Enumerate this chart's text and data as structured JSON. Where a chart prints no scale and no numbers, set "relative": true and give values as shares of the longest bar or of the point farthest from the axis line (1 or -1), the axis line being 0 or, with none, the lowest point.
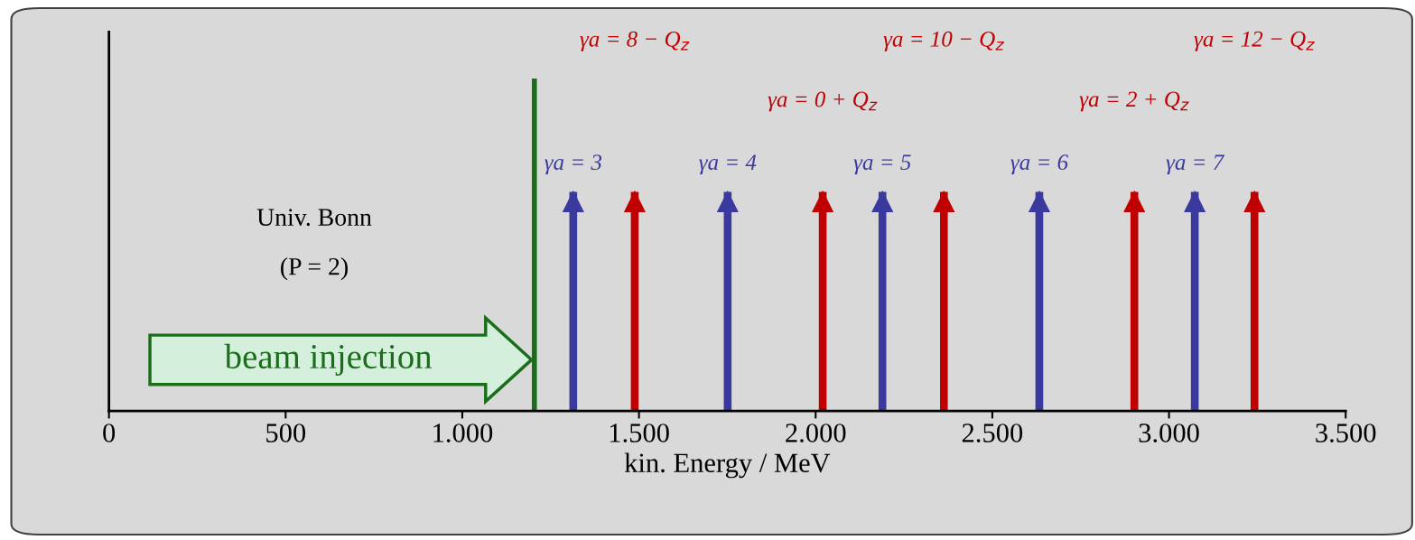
{
  "chart_data": {
    "type": "bar",
    "relative": true,
    "xlabel": "kin. Energy / MeV",
    "xlim": [
      0,
      3500
    ],
    "xticks": [
      0,
      500,
      {
        "value": 1000,
        "label": "1.000"
      },
      {
        "value": 1500,
        "label": "1.500"
      },
      {
        "value": 2000,
        "label": "2.000"
      },
      {
        "value": 2500,
        "label": "2.500"
      },
      {
        "value": 3000,
        "label": "3.000"
      },
      {
        "value": 3500,
        "label": "3.500"
      }
    ],
    "series": [
      {
        "color": "#3a3a9e",
        "x": [
          1314,
          1751,
          2189,
          2633,
          3073
        ],
        "values": [
          1,
          1,
          1,
          1,
          1
        ]
      },
      {
        "color": "#c00000",
        "x": [
          1488,
          2020,
          2363,
          2902,
          3242
        ],
        "values": [
          1,
          1,
          1,
          1,
          1
        ]
      }
    ],
    "ref_lines": [
      {
        "axis": "x",
        "value": 1204,
        "label": "beam injection",
        "color": "#1a6e1a"
      }
    ],
    "annotations": [
      {
        "text": "γa = 3",
        "x": 1314,
        "y": 1
      },
      {
        "text": "γa = 4",
        "x": 1751,
        "y": 1
      },
      {
        "text": "γa = 5",
        "x": 2189,
        "y": 1
      },
      {
        "text": "γa = 6",
        "x": 2633,
        "y": 1
      },
      {
        "text": "γa = 7",
        "x": 3073,
        "y": 1
      },
      "γa = 8 − Q$_{z}$",
      "γa = 0 + Q$_{z}$",
      "γa = 10 − Q$_{z}$",
      "γa = 2 + Q$_{z}$",
      "γa = 12 − Q$_{z}$",
      "Univ. Bonn",
      "(P = 2)"
    ],
    "grid": false
  }
}
